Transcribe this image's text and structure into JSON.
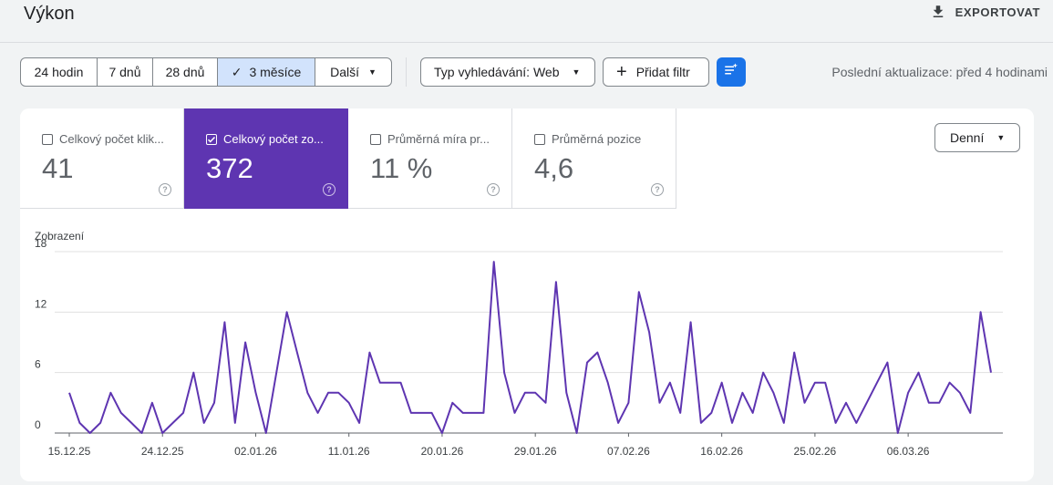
{
  "header": {
    "title": "Výkon",
    "export_label": "EXPORTOVAT",
    "export_icon": "download-icon"
  },
  "filters": {
    "ranges": [
      {
        "label": "24 hodin",
        "active": false
      },
      {
        "label": "7 dnů",
        "active": false
      },
      {
        "label": "28 dnů",
        "active": false
      },
      {
        "label": "3 měsíce",
        "active": true
      },
      {
        "label": "Další",
        "active": false
      }
    ],
    "search_type": "Typ vyhledávání: Web",
    "add_filter": "Přidat filtr",
    "last_update": "Poslední aktualizace: před 4 hodinami"
  },
  "metrics": [
    {
      "label": "Celkový počet klik...",
      "value": "41",
      "checked": false
    },
    {
      "label": "Celkový počet zo...",
      "value": "372",
      "checked": true
    },
    {
      "label": "Průměrná míra pr...",
      "value": "11 %",
      "checked": false
    },
    {
      "label": "Průměrná pozice",
      "value": "4,6",
      "checked": false
    }
  ],
  "granularity": "Denní",
  "colors": {
    "accent": "#5e35b1",
    "range_active": "#d2e3fc",
    "filter_button": "#1a73e8"
  },
  "chart_data": {
    "type": "line",
    "ylabel": "Zobrazení",
    "ylim": [
      0,
      18
    ],
    "yticks": [
      0,
      6,
      12,
      18
    ],
    "xtick_labels": [
      "15.12.25",
      "24.12.25",
      "02.01.26",
      "11.01.26",
      "20.01.26",
      "29.01.26",
      "07.02.26",
      "16.02.26",
      "25.02.26",
      "06.03.26"
    ],
    "grid": true,
    "series": [
      {
        "values": [
          4,
          1,
          0,
          1,
          4,
          2,
          1,
          0,
          3,
          0,
          1,
          2,
          6,
          1,
          3,
          11,
          1,
          9,
          4,
          0,
          6,
          12,
          8,
          4,
          2,
          4,
          4,
          3,
          1,
          8,
          5,
          5,
          5,
          2,
          2,
          2,
          0,
          3,
          2,
          2,
          2,
          17,
          6,
          2,
          4,
          4,
          3,
          15,
          4,
          0,
          7,
          8,
          5,
          1,
          3,
          14,
          10,
          3,
          5,
          2,
          11,
          1,
          2,
          5,
          1,
          4,
          2,
          6,
          4,
          1,
          8,
          3,
          5,
          5,
          1,
          3,
          1,
          3,
          5,
          7,
          0,
          4,
          6,
          3,
          3,
          5,
          4,
          2,
          12,
          6
        ]
      }
    ]
  }
}
